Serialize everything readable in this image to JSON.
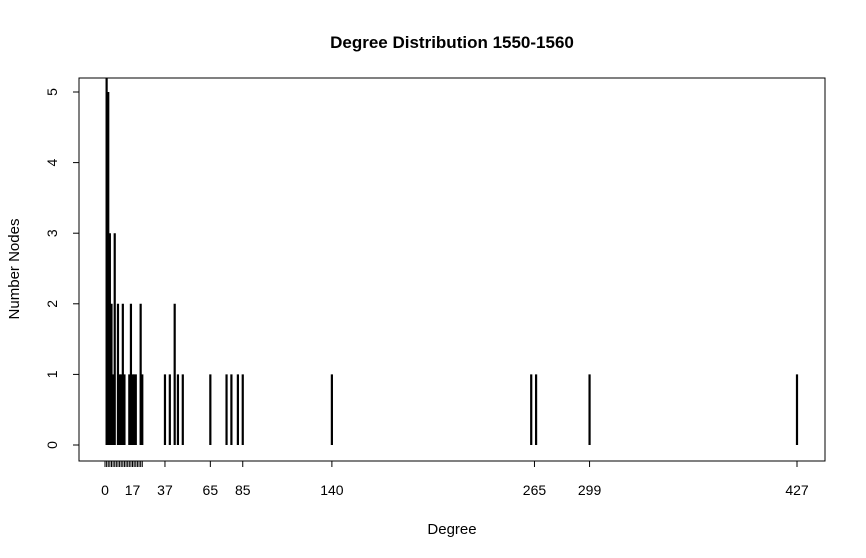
{
  "chart_data": {
    "type": "bar",
    "title": "Degree Distribution 1550-1560",
    "xlabel": "Degree",
    "ylabel": "Number Nodes",
    "xlim": [
      -1,
      442
    ],
    "ylim": [
      0,
      5
    ],
    "x_tick_labels": [
      0,
      17,
      37,
      65,
      85,
      140,
      265,
      299,
      427
    ],
    "x_minor_ticks": [
      1,
      2,
      3,
      4,
      5,
      6,
      7,
      8,
      9,
      10,
      11,
      12,
      13,
      14,
      15,
      16,
      17,
      18,
      19,
      20,
      21,
      22,
      23
    ],
    "y_ticks": [
      0,
      1,
      2,
      3,
      4,
      5
    ],
    "grid": false,
    "color": "#000000",
    "points": [
      {
        "x": 1,
        "y": 5.2
      },
      {
        "x": 2,
        "y": 5
      },
      {
        "x": 3,
        "y": 3
      },
      {
        "x": 4,
        "y": 2
      },
      {
        "x": 5,
        "y": 1
      },
      {
        "x": 6,
        "y": 3
      },
      {
        "x": 8,
        "y": 2
      },
      {
        "x": 9,
        "y": 1
      },
      {
        "x": 10,
        "y": 1
      },
      {
        "x": 11,
        "y": 2
      },
      {
        "x": 12,
        "y": 1
      },
      {
        "x": 15,
        "y": 1
      },
      {
        "x": 16,
        "y": 2
      },
      {
        "x": 17,
        "y": 1
      },
      {
        "x": 18,
        "y": 1
      },
      {
        "x": 19,
        "y": 1
      },
      {
        "x": 22,
        "y": 2
      },
      {
        "x": 23,
        "y": 1
      },
      {
        "x": 37,
        "y": 1
      },
      {
        "x": 40,
        "y": 1
      },
      {
        "x": 43,
        "y": 2
      },
      {
        "x": 45,
        "y": 1
      },
      {
        "x": 48,
        "y": 1
      },
      {
        "x": 65,
        "y": 1
      },
      {
        "x": 75,
        "y": 1
      },
      {
        "x": 78,
        "y": 1
      },
      {
        "x": 82,
        "y": 1
      },
      {
        "x": 85,
        "y": 1
      },
      {
        "x": 140,
        "y": 1
      },
      {
        "x": 263,
        "y": 1
      },
      {
        "x": 266,
        "y": 1
      },
      {
        "x": 299,
        "y": 1
      },
      {
        "x": 427,
        "y": 1
      }
    ]
  }
}
